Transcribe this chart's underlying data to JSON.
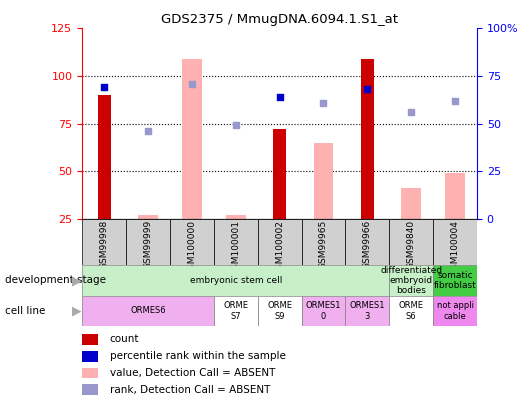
{
  "title": "GDS2375 / MmugDNA.6094.1.S1_at",
  "samples": [
    "GSM99998",
    "GSM99999",
    "GSM100000",
    "GSM100001",
    "GSM100002",
    "GSM99965",
    "GSM99966",
    "GSM99840",
    "GSM100004"
  ],
  "count_bars": [
    90,
    null,
    null,
    null,
    72,
    null,
    109,
    null,
    null
  ],
  "value_absent_bars": [
    null,
    27,
    109,
    27,
    null,
    65,
    null,
    41,
    49
  ],
  "percentile_rank": [
    94,
    null,
    null,
    null,
    89,
    null,
    93,
    null,
    null
  ],
  "rank_absent": [
    null,
    71,
    96,
    74,
    null,
    86,
    null,
    81,
    87
  ],
  "bar_color_red": "#cc0000",
  "bar_color_pink": "#ffb0b0",
  "dot_color_blue": "#0000cc",
  "dot_color_lightblue": "#9898cc",
  "ylim_left": [
    25,
    125
  ],
  "ylim_right": [
    0,
    100
  ],
  "yticks_left": [
    25,
    50,
    75,
    100,
    125
  ],
  "ytick_labels_left": [
    "25",
    "50",
    "75",
    "100",
    "125"
  ],
  "yticks_right": [
    0,
    25,
    50,
    75,
    100
  ],
  "ytick_labels_right": [
    "0",
    "25",
    "50",
    "75",
    "100%"
  ],
  "dev_stage_groups": [
    {
      "start": 0,
      "end": 7,
      "color": "#c8f0c8",
      "label": "embryonic stem cell"
    },
    {
      "start": 7,
      "end": 8,
      "color": "#c8f0c8",
      "label": "differentiated\nembryoid\nbodies"
    },
    {
      "start": 8,
      "end": 9,
      "color": "#44cc44",
      "label": "somatic\nfibroblast"
    }
  ],
  "cell_line_groups": [
    {
      "start": 0,
      "end": 3,
      "color": "#f0b0f0",
      "label": "ORMES6"
    },
    {
      "start": 3,
      "end": 4,
      "color": "#ffffff",
      "label": "ORME\nS7"
    },
    {
      "start": 4,
      "end": 5,
      "color": "#ffffff",
      "label": "ORME\nS9"
    },
    {
      "start": 5,
      "end": 6,
      "color": "#f0b0f0",
      "label": "ORMES1\n0"
    },
    {
      "start": 6,
      "end": 7,
      "color": "#f0b0f0",
      "label": "ORMES1\n3"
    },
    {
      "start": 7,
      "end": 8,
      "color": "#ffffff",
      "label": "ORME\nS6"
    },
    {
      "start": 8,
      "end": 9,
      "color": "#ee88ee",
      "label": "not appli\ncable"
    }
  ]
}
